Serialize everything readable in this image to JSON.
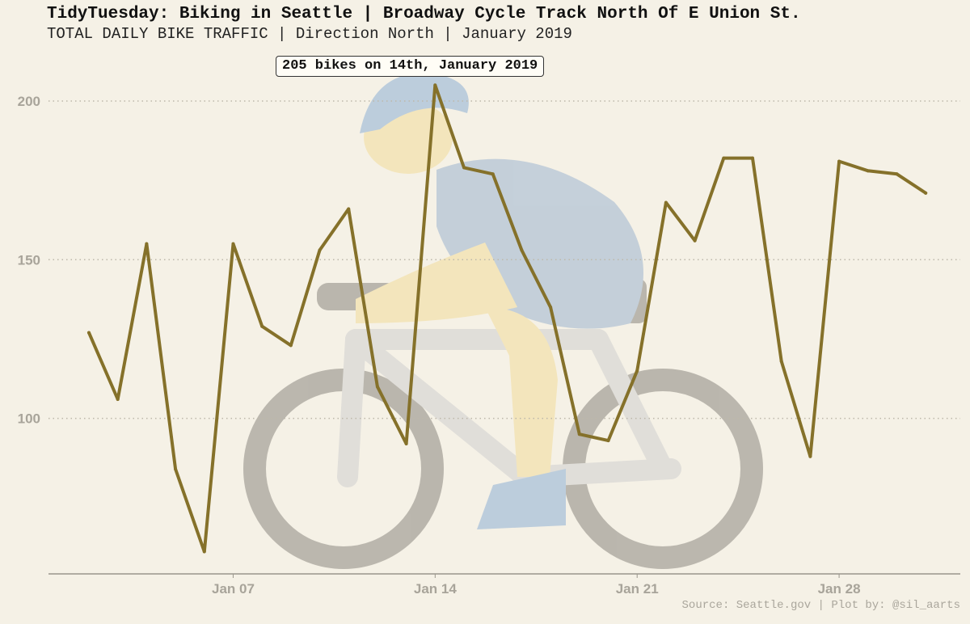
{
  "header": {
    "title": "TidyTuesday: Biking in Seattle | Broadway Cycle Track North Of E Union St.",
    "subtitle": "TOTAL DAILY BIKE TRAFFIC | Direction North | January 2019"
  },
  "caption": "Source: Seattle.gov | Plot by: @sil_aarts",
  "background_image": "cyclist-emoji",
  "colors": {
    "background": "#f5f1e6",
    "line": "#85712a",
    "grid": "#bdb8aa",
    "axis_text": "#a8a49a"
  },
  "chart_data": {
    "type": "line",
    "x": [
      2,
      3,
      4,
      5,
      6,
      7,
      8,
      9,
      10,
      11,
      12,
      13,
      14,
      15,
      16,
      17,
      18,
      19,
      20,
      21,
      22,
      23,
      24,
      25,
      26,
      27,
      28,
      29,
      30,
      31
    ],
    "values": [
      127,
      106,
      155,
      84,
      58,
      155,
      129,
      123,
      153,
      166,
      110,
      92,
      205,
      179,
      177,
      153,
      135,
      95,
      93,
      115,
      168,
      156,
      182,
      182,
      118,
      88,
      181,
      178,
      177,
      171
    ],
    "x_tick_labels": [
      "Jan 07",
      "Jan 14",
      "Jan 21",
      "Jan 28"
    ],
    "x_tick_values": [
      7,
      14,
      21,
      28
    ],
    "y_tick_values": [
      100,
      150,
      200
    ],
    "xlim": [
      0.6,
      32.2
    ],
    "ylim": [
      51,
      214
    ],
    "grid": "horizontal dotted",
    "annotation": {
      "text": "205 bikes on 14th, January 2019",
      "x": 14,
      "y": 205
    }
  }
}
